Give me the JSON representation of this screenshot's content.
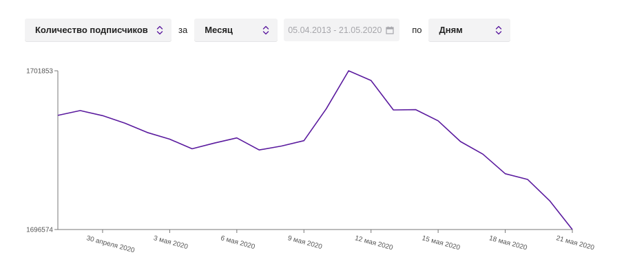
{
  "controls": {
    "metric_value": "Количество подписчиков",
    "word_for": "за",
    "period_value": "Месяц",
    "date_range": "05.04.2013 - 21.05.2020",
    "word_by": "по",
    "group_value": "Дням",
    "select_icon": "chevron-up-down-icon",
    "calendar_icon": "calendar-icon"
  },
  "chart_data": {
    "type": "line",
    "title": "",
    "xlabel": "",
    "ylabel": "",
    "color": "#5a1a9e",
    "ylim": [
      1696574,
      1701853
    ],
    "ytick_labels": [
      "1701853",
      "1696574"
    ],
    "xtick_labels": [
      "30 апреля 2020",
      "3 мая 2020",
      "6 мая 2020",
      "9 мая 2020",
      "12 мая 2020",
      "15 мая 2020",
      "18 мая 2020",
      "21 мая 2020"
    ],
    "x": [
      "28.04.2020",
      "29.04.2020",
      "30.04.2020",
      "01.05.2020",
      "02.05.2020",
      "03.05.2020",
      "04.05.2020",
      "05.05.2020",
      "06.05.2020",
      "07.05.2020",
      "08.05.2020",
      "09.05.2020",
      "10.05.2020",
      "11.05.2020",
      "12.05.2020",
      "13.05.2020",
      "14.05.2020",
      "15.05.2020",
      "16.05.2020",
      "17.05.2020",
      "18.05.2020",
      "19.05.2020",
      "20.05.2020",
      "21.05.2020"
    ],
    "series": [
      {
        "values": [
          1700370,
          1700530,
          1700360,
          1700110,
          1699800,
          1699580,
          1699260,
          1699450,
          1699620,
          1699220,
          1699350,
          1699530,
          1700590,
          1701853,
          1701530,
          1700550,
          1700560,
          1700190,
          1699500,
          1699080,
          1698430,
          1698240,
          1697520,
          1696574
        ]
      }
    ]
  }
}
